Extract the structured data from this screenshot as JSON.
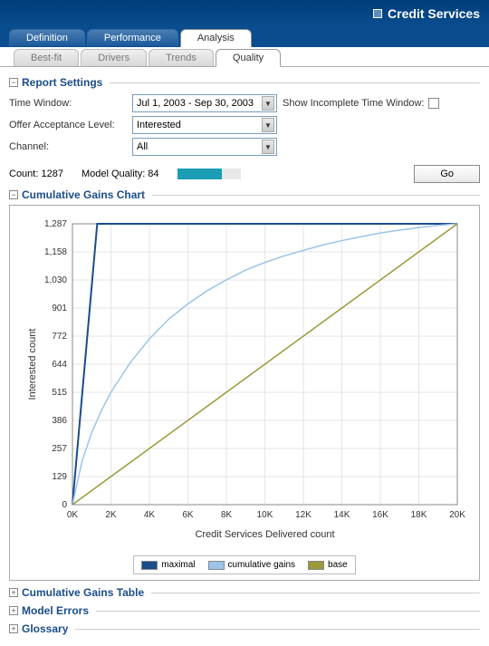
{
  "header": {
    "title": "Credit Services"
  },
  "mainTabs": [
    {
      "label": "Definition",
      "active": false
    },
    {
      "label": "Performance",
      "active": false
    },
    {
      "label": "Analysis",
      "active": true
    }
  ],
  "subTabs": [
    {
      "label": "Best-fit",
      "active": false
    },
    {
      "label": "Drivers",
      "active": false
    },
    {
      "label": "Trends",
      "active": false
    },
    {
      "label": "Quality",
      "active": true
    }
  ],
  "reportSettings": {
    "title": "Report Settings",
    "timeWindow": {
      "label": "Time Window:",
      "value": "Jul 1, 2003 - Sep 30, 2003"
    },
    "showIncomplete": {
      "label": "Show Incomplete Time Window:",
      "checked": false
    },
    "offerAcceptance": {
      "label": "Offer Acceptance Level:",
      "value": "Interested"
    },
    "channel": {
      "label": "Channel:",
      "value": "All"
    }
  },
  "stats": {
    "countLabel": "Count: 1287",
    "qualityLabel": "Model Quality: 84",
    "qualityPercent": 70,
    "goLabel": "Go"
  },
  "chartSection": {
    "title": "Cumulative Gains Chart"
  },
  "chart": {
    "type": "line",
    "xLabel": "Credit Services Delivered count",
    "yLabel": "Interested count",
    "xTicks": [
      "0K",
      "2K",
      "4K",
      "6K",
      "8K",
      "10K",
      "12K",
      "14K",
      "16K",
      "18K",
      "20K"
    ],
    "yTicks": [
      "0",
      "129",
      "257",
      "386",
      "515",
      "644",
      "772",
      "901",
      "1,030",
      "1,158",
      "1,287"
    ],
    "xlim": [
      0,
      20000
    ],
    "ylim": [
      0,
      1287
    ],
    "gridColor": "#cccccc",
    "borderColor": "#888888",
    "background": "#ffffff",
    "series": [
      {
        "name": "maximal",
        "color": "#1a4d8a",
        "lineWidth": 2,
        "points": [
          [
            0,
            0
          ],
          [
            1287,
            1287
          ],
          [
            20000,
            1287
          ]
        ]
      },
      {
        "name": "cumulative gains",
        "color": "#9cc4e8",
        "lineWidth": 1.5,
        "points": [
          [
            0,
            0
          ],
          [
            500,
            200
          ],
          [
            1000,
            330
          ],
          [
            1500,
            430
          ],
          [
            2000,
            515
          ],
          [
            3000,
            650
          ],
          [
            4000,
            760
          ],
          [
            5000,
            850
          ],
          [
            6000,
            920
          ],
          [
            7000,
            980
          ],
          [
            8000,
            1030
          ],
          [
            9000,
            1075
          ],
          [
            10000,
            1110
          ],
          [
            11000,
            1140
          ],
          [
            12000,
            1165
          ],
          [
            13000,
            1190
          ],
          [
            14000,
            1210
          ],
          [
            15000,
            1228
          ],
          [
            16000,
            1245
          ],
          [
            17000,
            1258
          ],
          [
            18000,
            1270
          ],
          [
            19000,
            1280
          ],
          [
            20000,
            1287
          ]
        ]
      },
      {
        "name": "base",
        "color": "#9a9a3a",
        "lineWidth": 1.5,
        "points": [
          [
            0,
            0
          ],
          [
            20000,
            1287
          ]
        ]
      }
    ]
  },
  "legend": [
    {
      "label": "maximal",
      "color": "#1a4d8a"
    },
    {
      "label": "cumulative gains",
      "color": "#9cc4e8"
    },
    {
      "label": "base",
      "color": "#9a9a3a"
    }
  ],
  "collapsedSections": [
    {
      "title": "Cumulative Gains Table"
    },
    {
      "title": "Model Errors"
    },
    {
      "title": "Glossary"
    }
  ]
}
